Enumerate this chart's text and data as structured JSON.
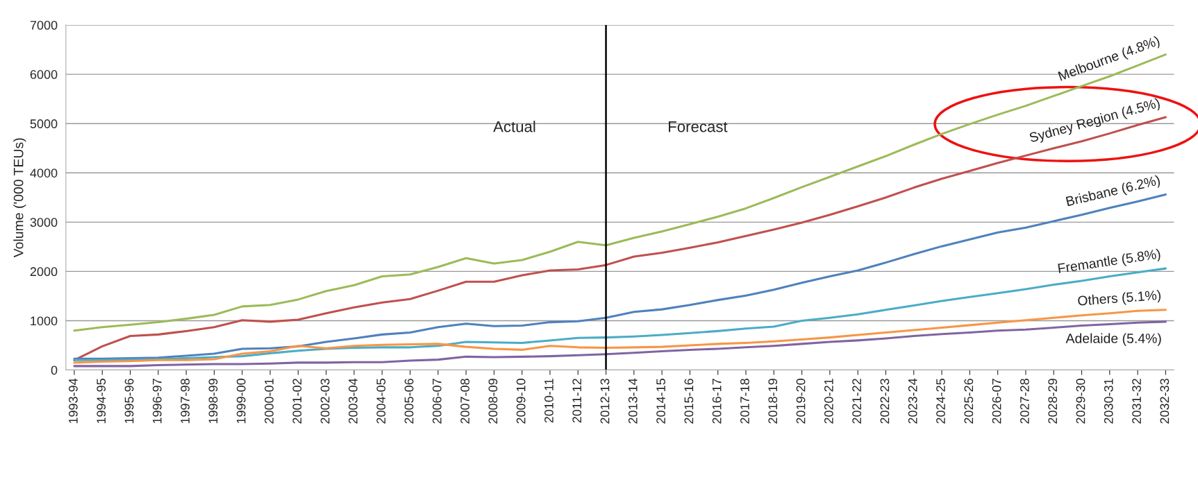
{
  "chart_data": {
    "type": "line",
    "ylabel": "Volume ('000 TEUs)",
    "categories": [
      "1993-94",
      "1994-95",
      "1995-96",
      "1996-97",
      "1997-98",
      "1998-99",
      "1999-00",
      "2000-01",
      "2001-02",
      "2002-03",
      "2003-04",
      "2004-05",
      "2005-06",
      "2006-07",
      "2007-08",
      "2008-09",
      "2009-10",
      "2010-11",
      "2011-12",
      "2012-13",
      "2013-14",
      "2014-15",
      "2015-16",
      "2016-17",
      "2017-18",
      "2018-19",
      "2019-20",
      "2020-21",
      "2021-22",
      "2022-23",
      "2023-24",
      "2024-25",
      "2025-26",
      "2026-07",
      "2027-28",
      "2028-29",
      "2029-30",
      "2030-31",
      "2031-32",
      "2032-33"
    ],
    "series": [
      {
        "name": "Melbourne (4.8%)",
        "color": "#9bbb59",
        "values": [
          800,
          870,
          920,
          970,
          1040,
          1120,
          1290,
          1320,
          1430,
          1600,
          1720,
          1900,
          1940,
          2090,
          2270,
          2160,
          2230,
          2400,
          2600,
          2530,
          2680,
          2810,
          2960,
          3110,
          3280,
          3490,
          3710,
          3920,
          4130,
          4340,
          4570,
          4790,
          4990,
          5180,
          5360,
          5560,
          5760,
          5960,
          6180,
          6400
        ]
      },
      {
        "name": "Sydney Region (4.5%)",
        "color": "#c0504d",
        "values": [
          200,
          480,
          690,
          720,
          790,
          870,
          1010,
          980,
          1020,
          1150,
          1270,
          1370,
          1440,
          1610,
          1790,
          1790,
          1920,
          2020,
          2040,
          2130,
          2300,
          2380,
          2480,
          2590,
          2720,
          2850,
          2990,
          3150,
          3320,
          3500,
          3700,
          3880,
          4040,
          4200,
          4350,
          4500,
          4640,
          4800,
          4970,
          5130
        ]
      },
      {
        "name": "Brisbane (6.2%)",
        "color": "#4f81bd",
        "values": [
          230,
          230,
          240,
          250,
          290,
          330,
          430,
          440,
          480,
          570,
          640,
          720,
          760,
          870,
          940,
          890,
          900,
          970,
          990,
          1060,
          1180,
          1230,
          1320,
          1420,
          1510,
          1630,
          1770,
          1900,
          2020,
          2180,
          2350,
          2510,
          2650,
          2790,
          2890,
          3020,
          3150,
          3290,
          3420,
          3560
        ]
      },
      {
        "name": "Fremantle (5.8%)",
        "color": "#4bacc6",
        "values": [
          200,
          200,
          210,
          220,
          240,
          260,
          280,
          340,
          390,
          430,
          450,
          460,
          460,
          490,
          570,
          560,
          550,
          600,
          650,
          660,
          680,
          710,
          750,
          790,
          840,
          880,
          1000,
          1060,
          1130,
          1220,
          1310,
          1400,
          1480,
          1560,
          1640,
          1730,
          1810,
          1900,
          1980,
          2060
        ]
      },
      {
        "name": "Others (5.1%)",
        "color": "#f79646",
        "values": [
          150,
          170,
          180,
          200,
          200,
          220,
          330,
          380,
          490,
          440,
          490,
          510,
          520,
          530,
          470,
          430,
          410,
          490,
          460,
          450,
          460,
          470,
          500,
          530,
          550,
          580,
          620,
          660,
          710,
          760,
          810,
          860,
          910,
          960,
          1010,
          1060,
          1110,
          1150,
          1200,
          1220
        ]
      },
      {
        "name": "Adelaide (5.4%)",
        "color": "#8064a2",
        "values": [
          80,
          80,
          80,
          100,
          110,
          120,
          120,
          130,
          150,
          150,
          160,
          160,
          190,
          210,
          270,
          260,
          270,
          280,
          300,
          320,
          350,
          380,
          410,
          430,
          460,
          490,
          530,
          570,
          600,
          640,
          690,
          730,
          760,
          800,
          820,
          860,
          900,
          930,
          960,
          980
        ]
      }
    ],
    "ylim": [
      0,
      7000
    ],
    "yticks": [
      0,
      1000,
      2000,
      3000,
      4000,
      5000,
      6000,
      7000
    ],
    "grid": "y",
    "legend": false,
    "marker": "none",
    "line_style": "solid",
    "ref_lines": [
      {
        "axis": "x",
        "value": "2012-13",
        "color": "#000000"
      }
    ],
    "annotations": [
      "Actual",
      "Forecast"
    ]
  }
}
